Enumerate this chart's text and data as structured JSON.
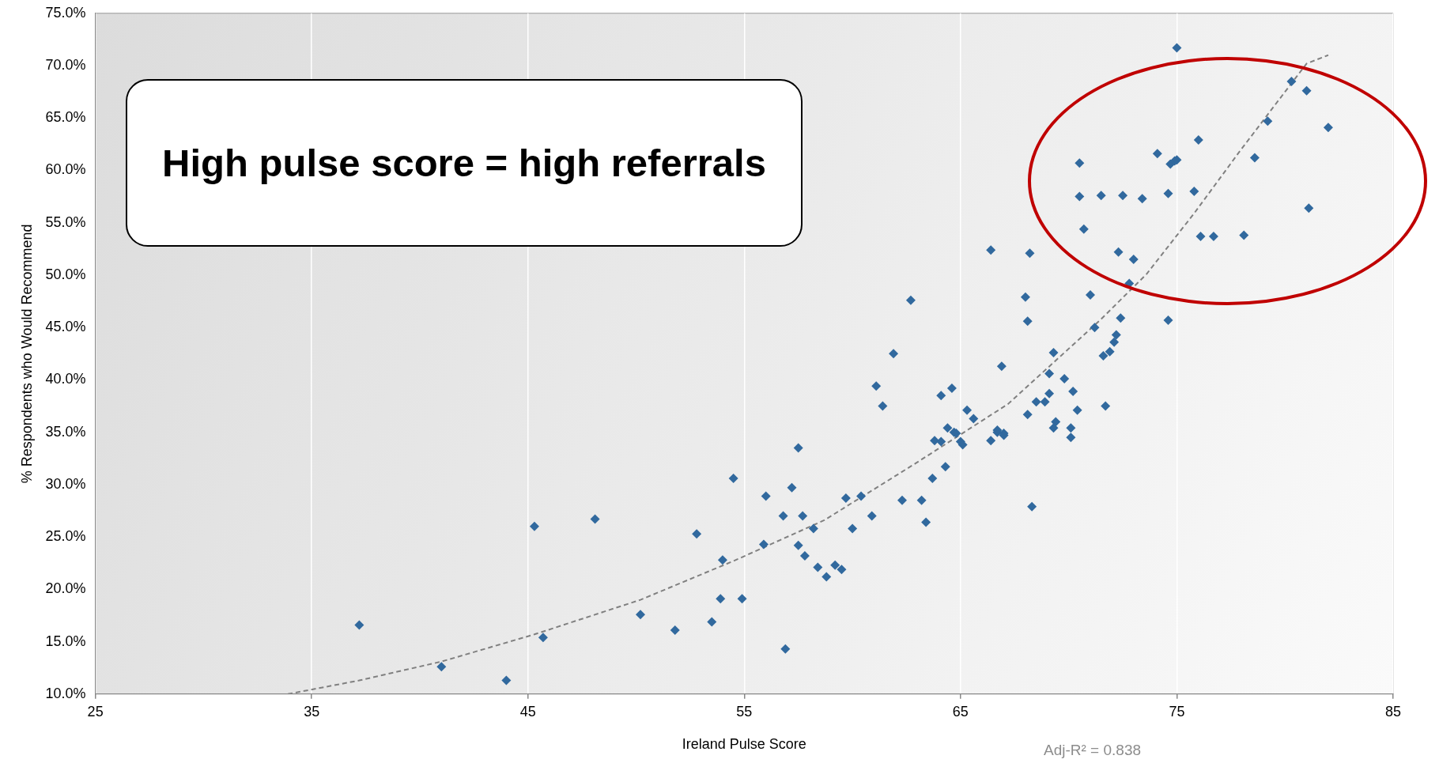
{
  "chart_data": {
    "type": "scatter",
    "xlabel": "Ireland Pulse Score",
    "ylabel": "% Respondents who Would Recommend",
    "xlim": [
      25,
      85
    ],
    "xticks": [
      25,
      35,
      45,
      55,
      65,
      75,
      85
    ],
    "ylim": [
      10,
      75
    ],
    "yticks": [
      {
        "value": 10,
        "label": "10.0%"
      },
      {
        "value": 15,
        "label": "15.0%"
      },
      {
        "value": 20,
        "label": "20.0%"
      },
      {
        "value": 25,
        "label": "25.0%"
      },
      {
        "value": 30,
        "label": "30.0%"
      },
      {
        "value": 35,
        "label": "35.0%"
      },
      {
        "value": 40,
        "label": "40.0%"
      },
      {
        "value": 45,
        "label": "45.0%"
      },
      {
        "value": 50,
        "label": "50.0%"
      },
      {
        "value": 55,
        "label": "55.0%"
      },
      {
        "value": 60,
        "label": "60.0%"
      },
      {
        "value": 65,
        "label": "65.0%"
      },
      {
        "value": 70,
        "label": "70.0%"
      },
      {
        "value": 75,
        "label": "75.0%"
      }
    ],
    "grid": "x",
    "legend": false,
    "annotations": [
      "High pulse score = high referrals",
      "Adj-R² = 0.838"
    ],
    "series": [
      {
        "marker": "diamond",
        "color": "#31699e",
        "x": [
          37.2,
          41.0,
          44.0,
          45.3,
          45.7,
          48.1,
          50.2,
          51.8,
          52.8,
          53.5,
          53.9,
          54.0,
          54.5,
          54.9,
          55.9,
          56.0,
          56.8,
          56.9,
          57.2,
          57.5,
          57.5,
          57.7,
          57.8,
          58.2,
          58.4,
          58.8,
          59.2,
          59.5,
          59.7,
          60.0,
          60.4,
          60.9,
          61.1,
          61.4,
          61.9,
          62.3,
          62.7,
          63.2,
          63.4,
          63.7,
          63.8,
          64.1,
          64.1,
          64.3,
          64.4,
          64.6,
          64.7,
          64.8,
          65.0,
          65.1,
          65.3,
          65.6,
          66.4,
          66.4,
          66.7,
          66.7,
          66.9,
          67.0,
          67.0,
          68.0,
          68.1,
          68.1,
          68.2,
          68.3,
          68.5,
          68.9,
          69.1,
          69.1,
          69.3,
          69.3,
          69.4,
          69.8,
          70.1,
          70.1,
          70.2,
          70.4,
          70.5,
          70.5,
          70.7,
          71.0,
          71.2,
          71.5,
          71.6,
          71.7,
          71.9,
          72.1,
          72.2,
          72.3,
          72.4,
          72.5,
          72.8,
          73.0,
          73.4,
          74.1,
          74.6,
          74.6,
          74.7,
          74.9,
          75.0,
          75.0,
          75.8,
          76.0,
          76.1,
          76.7,
          78.1,
          78.6,
          79.2,
          80.3,
          81.0,
          81.1,
          82.0
        ],
        "values": [
          16.6,
          12.6,
          11.3,
          26.0,
          15.4,
          26.7,
          17.6,
          16.1,
          25.3,
          16.9,
          19.1,
          22.8,
          30.6,
          19.1,
          24.3,
          28.9,
          27.0,
          14.3,
          29.7,
          24.2,
          33.5,
          27.0,
          23.2,
          25.8,
          22.1,
          21.2,
          22.3,
          21.9,
          28.7,
          25.8,
          28.9,
          27.0,
          39.4,
          37.5,
          42.5,
          28.5,
          47.6,
          28.5,
          26.4,
          30.6,
          34.2,
          34.1,
          38.5,
          31.7,
          35.4,
          39.2,
          35.0,
          34.9,
          34.1,
          33.8,
          37.1,
          36.3,
          52.4,
          34.2,
          35.0,
          35.2,
          41.3,
          34.9,
          34.7,
          47.9,
          45.6,
          36.7,
          52.1,
          27.9,
          37.9,
          37.9,
          38.7,
          40.6,
          42.6,
          35.4,
          36.0,
          40.1,
          34.5,
          35.4,
          38.9,
          37.1,
          60.7,
          57.5,
          54.4,
          48.1,
          45.0,
          57.6,
          42.3,
          37.5,
          42.7,
          43.6,
          44.3,
          52.2,
          45.9,
          57.6,
          49.2,
          51.5,
          57.3,
          61.6,
          45.7,
          57.8,
          60.6,
          60.9,
          61.0,
          71.7,
          58.0,
          62.9,
          53.7,
          53.7,
          53.8,
          61.2,
          64.7,
          68.5,
          67.6,
          56.4,
          64.1
        ]
      },
      {
        "type": "line",
        "marker": "none",
        "color": "#808080",
        "line_style": "dashed",
        "x": [
          33.9,
          37.2,
          41.0,
          45.3,
          50.2,
          54.5,
          58.7,
          62.9,
          67.2,
          71.5,
          73.6,
          75.8,
          77.9,
          80.0,
          81.0,
          82.0
        ],
        "values": [
          10.0,
          11.3,
          13.1,
          15.7,
          19.0,
          22.7,
          26.6,
          32.0,
          37.7,
          45.8,
          50.1,
          55.9,
          61.8,
          67.5,
          70.2,
          71.0
        ]
      }
    ]
  }
}
